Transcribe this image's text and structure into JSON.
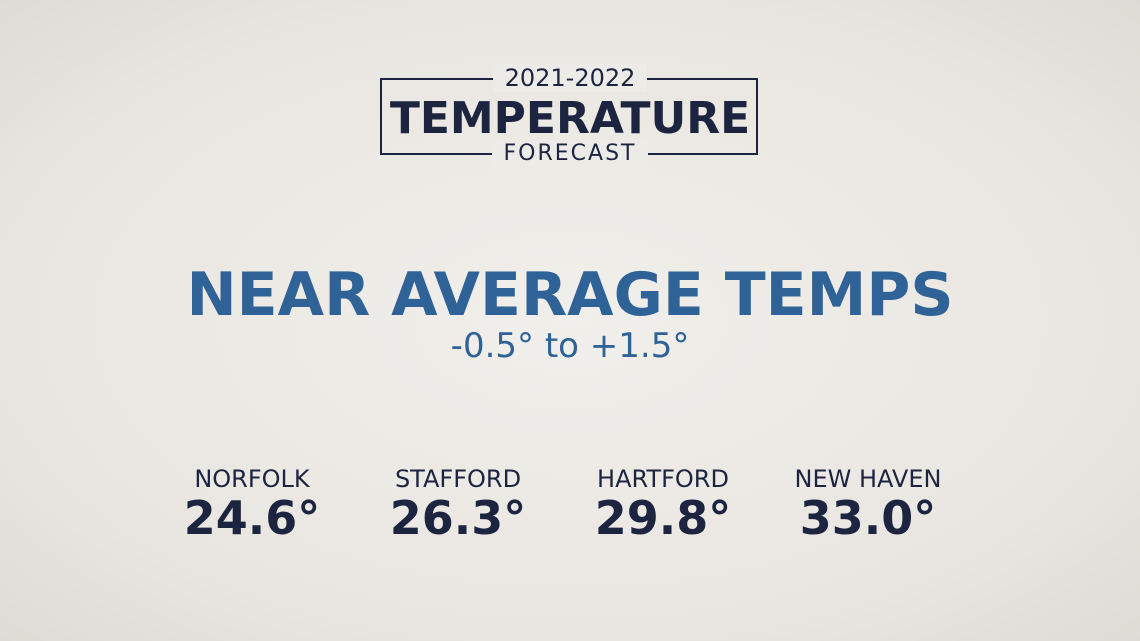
{
  "header": {
    "years": "2021-2022",
    "title": "TEMPERATURE",
    "subtitle": "FORECAST"
  },
  "headline": {
    "title": "NEAR AVERAGE TEMPS",
    "range": "-0.5° to +1.5°"
  },
  "cities": [
    {
      "name": "NORFOLK",
      "temp": "24.6°"
    },
    {
      "name": "STAFFORD",
      "temp": "26.3°"
    },
    {
      "name": "HARTFORD",
      "temp": "29.8°"
    },
    {
      "name": "NEW HAVEN",
      "temp": "33.0°"
    }
  ]
}
